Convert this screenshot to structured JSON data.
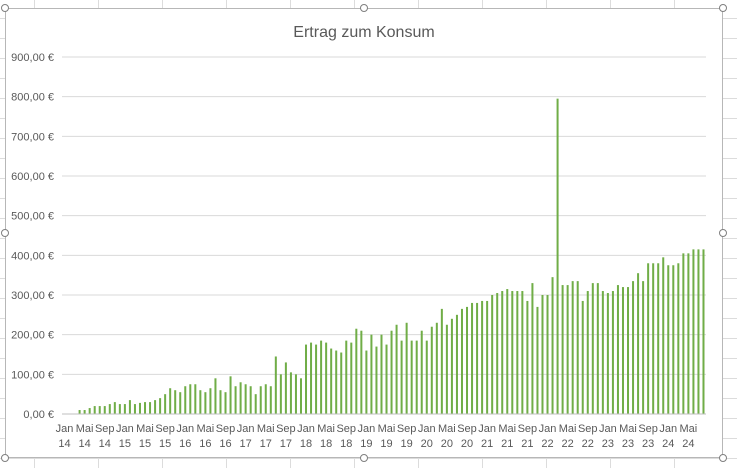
{
  "chart_data": {
    "type": "bar",
    "title": "Ertrag zum Konsum",
    "xlabel": "",
    "ylabel": "",
    "ylim": [
      0,
      900
    ],
    "y_ticks": [
      "0,00 €",
      "100,00 €",
      "200,00 €",
      "300,00 €",
      "400,00 €",
      "500,00 €",
      "600,00 €",
      "700,00 €",
      "800,00 €",
      "900,00 €"
    ],
    "x_tick_labels": [
      {
        "month": "Jan",
        "year": "14"
      },
      {
        "month": "Mai",
        "year": "14"
      },
      {
        "month": "Sep",
        "year": "14"
      },
      {
        "month": "Jan",
        "year": "15"
      },
      {
        "month": "Mai",
        "year": "15"
      },
      {
        "month": "Sep",
        "year": "15"
      },
      {
        "month": "Jan",
        "year": "16"
      },
      {
        "month": "Mai",
        "year": "16"
      },
      {
        "month": "Sep",
        "year": "16"
      },
      {
        "month": "Jan",
        "year": "17"
      },
      {
        "month": "Mai",
        "year": "17"
      },
      {
        "month": "Sep",
        "year": "17"
      },
      {
        "month": "Jan",
        "year": "18"
      },
      {
        "month": "Mai",
        "year": "18"
      },
      {
        "month": "Sep",
        "year": "18"
      },
      {
        "month": "Jan",
        "year": "19"
      },
      {
        "month": "Mai",
        "year": "19"
      },
      {
        "month": "Sep",
        "year": "19"
      },
      {
        "month": "Jan",
        "year": "20"
      },
      {
        "month": "Mai",
        "year": "20"
      },
      {
        "month": "Sep",
        "year": "20"
      },
      {
        "month": "Jan",
        "year": "21"
      },
      {
        "month": "Mai",
        "year": "21"
      },
      {
        "month": "Sep",
        "year": "21"
      },
      {
        "month": "Jan",
        "year": "22"
      },
      {
        "month": "Mai",
        "year": "22"
      },
      {
        "month": "Sep",
        "year": "22"
      },
      {
        "month": "Jan",
        "year": "23"
      },
      {
        "month": "Mai",
        "year": "23"
      },
      {
        "month": "Sep",
        "year": "23"
      },
      {
        "month": "Jan",
        "year": "24"
      },
      {
        "month": "Mai",
        "year": "24"
      }
    ],
    "grid": true,
    "legend": "none",
    "bar_color": "#70ad47",
    "x_start": "Jan 14",
    "values": [
      0,
      0,
      0,
      10,
      10,
      15,
      20,
      20,
      20,
      25,
      30,
      25,
      25,
      35,
      25,
      28,
      30,
      30,
      35,
      40,
      50,
      65,
      60,
      55,
      70,
      75,
      75,
      60,
      55,
      65,
      90,
      60,
      55,
      95,
      70,
      80,
      75,
      70,
      50,
      70,
      75,
      70,
      145,
      100,
      130,
      105,
      100,
      90,
      175,
      180,
      175,
      185,
      180,
      165,
      160,
      155,
      185,
      180,
      215,
      210,
      160,
      200,
      170,
      200,
      175,
      210,
      225,
      185,
      230,
      185,
      185,
      210,
      185,
      220,
      230,
      265,
      225,
      240,
      250,
      265,
      270,
      280,
      280,
      285,
      285,
      300,
      305,
      310,
      315,
      310,
      310,
      310,
      285,
      330,
      270,
      300,
      300,
      345,
      795,
      325,
      325,
      335,
      335,
      285,
      310,
      330,
      330,
      310,
      305,
      310,
      325,
      320,
      320,
      335,
      355,
      335,
      380,
      380,
      380,
      395,
      375,
      375,
      380,
      405,
      405,
      415,
      415,
      415
    ]
  }
}
